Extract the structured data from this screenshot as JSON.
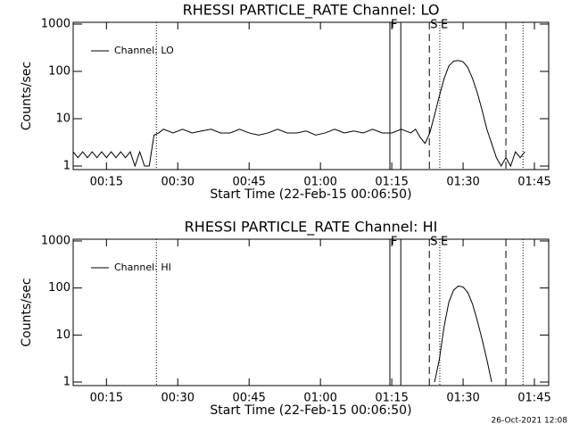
{
  "chart_data": [
    {
      "type": "line",
      "title": "RHESSI PARTICLE_RATE Channel: LO",
      "xlabel": "Start Time (22-Feb-15 00:06:50)",
      "ylabel": "Counts/sec",
      "log_y": true,
      "xlim": [
        8,
        108
      ],
      "ylim": [
        0.84,
        1090
      ],
      "xticks": [
        {
          "value": 15,
          "label": "00:15"
        },
        {
          "value": 30,
          "label": "00:30"
        },
        {
          "value": 45,
          "label": "00:45"
        },
        {
          "value": 60,
          "label": "01:00"
        },
        {
          "value": 75,
          "label": "01:15"
        },
        {
          "value": 90,
          "label": "01:30"
        },
        {
          "value": 105,
          "label": "01:45"
        }
      ],
      "yticks": [
        1,
        10,
        100,
        1000
      ],
      "legend": "upper left",
      "vlines": [
        {
          "x": 25.5,
          "style": "dotted"
        },
        {
          "x": 74.6,
          "style": "solid",
          "label": "F"
        },
        {
          "x": 76.9,
          "style": "solid"
        },
        {
          "x": 82.9,
          "style": "dashed",
          "label": "S"
        },
        {
          "x": 85.1,
          "style": "dotted",
          "label": "E"
        },
        {
          "x": 99,
          "style": "dashed"
        },
        {
          "x": 102.6,
          "style": "dotted"
        }
      ],
      "series": [
        {
          "name": "Channel: LO",
          "color": "#000000",
          "x": [
            8,
            9,
            10,
            11,
            12,
            13,
            14,
            15,
            16,
            17,
            18,
            19,
            20,
            21,
            22,
            23,
            24,
            25,
            26,
            27,
            29,
            31,
            33,
            35,
            37,
            39,
            41,
            43,
            45,
            47,
            49,
            51,
            53,
            55,
            57,
            59,
            61,
            63,
            65,
            67,
            69,
            71,
            73,
            75,
            77,
            79,
            80,
            81,
            82,
            83,
            84,
            85,
            86,
            87,
            88,
            89,
            90,
            91,
            92,
            93,
            94,
            95,
            96,
            97,
            98,
            99,
            100,
            101,
            102,
            103
          ],
          "values": [
            2,
            1.5,
            2,
            1.5,
            2,
            1.5,
            2,
            1.5,
            2,
            1.5,
            2,
            1.5,
            2,
            1,
            2,
            1,
            1,
            4.5,
            5,
            6,
            5,
            6,
            5,
            5.5,
            6,
            5,
            5,
            6,
            5,
            4.5,
            5,
            6,
            5,
            5,
            5.5,
            4.5,
            5,
            6,
            5,
            5.5,
            5,
            6,
            5,
            5,
            6,
            5,
            6,
            4,
            3,
            5,
            12,
            30,
            70,
            130,
            165,
            170,
            160,
            120,
            70,
            35,
            15,
            6,
            3,
            1.5,
            1,
            1.5,
            1,
            2,
            1.5,
            2
          ]
        }
      ]
    },
    {
      "type": "line",
      "title": "RHESSI PARTICLE_RATE Channel: HI",
      "xlabel": "Start Time (22-Feb-15 00:06:50)",
      "ylabel": "Counts/sec",
      "log_y": true,
      "xlim": [
        8,
        108
      ],
      "ylim": [
        0.84,
        1090
      ],
      "xticks": [
        {
          "value": 15,
          "label": "00:15"
        },
        {
          "value": 30,
          "label": "00:30"
        },
        {
          "value": 45,
          "label": "00:45"
        },
        {
          "value": 60,
          "label": "01:00"
        },
        {
          "value": 75,
          "label": "01:15"
        },
        {
          "value": 90,
          "label": "01:30"
        },
        {
          "value": 105,
          "label": "01:45"
        }
      ],
      "yticks": [
        1,
        10,
        100,
        1000
      ],
      "legend": "upper left",
      "vlines": [
        {
          "x": 25.5,
          "style": "dotted"
        },
        {
          "x": 74.6,
          "style": "solid",
          "label": "F"
        },
        {
          "x": 76.9,
          "style": "solid"
        },
        {
          "x": 82.9,
          "style": "dashed",
          "label": "S"
        },
        {
          "x": 85.1,
          "style": "dotted",
          "label": "E"
        },
        {
          "x": 99,
          "style": "dashed"
        },
        {
          "x": 102.6,
          "style": "dotted"
        }
      ],
      "series": [
        {
          "name": "Channel: HI",
          "color": "#000000",
          "x": [
            84,
            85,
            86,
            87,
            88,
            89,
            90,
            91,
            92,
            93,
            94,
            95,
            96
          ],
          "values": [
            1,
            3,
            15,
            50,
            90,
            110,
            105,
            80,
            45,
            20,
            8,
            3,
            1
          ]
        }
      ]
    }
  ],
  "footer": "26-Oct-2021 12:08"
}
